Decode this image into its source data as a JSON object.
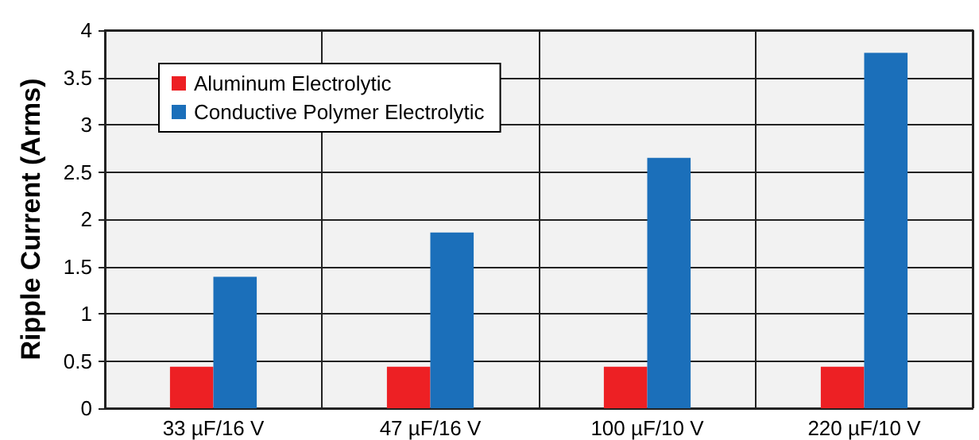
{
  "chart_data": {
    "type": "bar",
    "ylabel": "Ripple Current (Arms)",
    "categories": [
      "33 µF/16 V",
      "47 µF/16 V",
      "100 µF/10 V",
      "220 µF/10 V"
    ],
    "series": [
      {
        "name": "Aluminum Electrolytic",
        "color": "#ed2024",
        "values": [
          0.44,
          0.44,
          0.44,
          0.44
        ]
      },
      {
        "name": "Conductive Polymer Electrolytic",
        "color": "#1b6fba",
        "values": [
          1.39,
          1.86,
          2.65,
          3.76
        ]
      }
    ],
    "ylim": [
      0,
      4
    ],
    "yticks": [
      0,
      0.5,
      1,
      1.5,
      2,
      2.5,
      3,
      3.5,
      4
    ],
    "grid": true,
    "legend": "top left"
  }
}
